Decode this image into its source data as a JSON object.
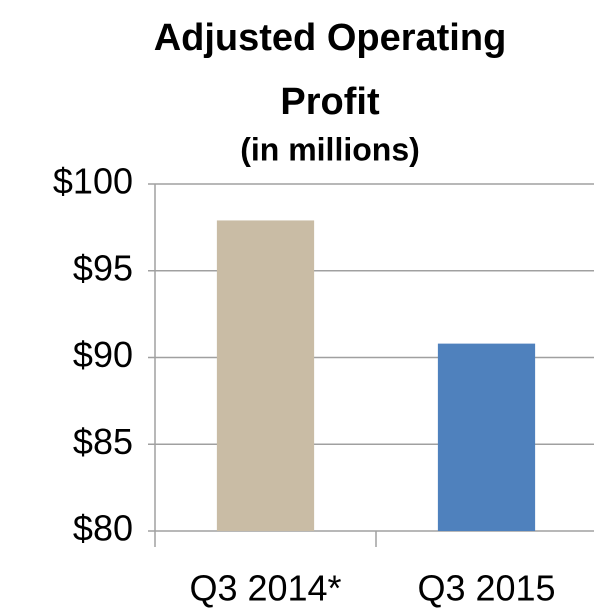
{
  "chart_data": {
    "type": "bar",
    "title": "Adjusted Operating Profit",
    "subtitle": "(in millions)",
    "categories": [
      "Q3 2014*",
      "Q3 2015"
    ],
    "values": [
      97.9,
      90.8
    ],
    "colors": [
      "#c9bca5",
      "#4f81bd"
    ],
    "ylim": [
      80,
      100
    ],
    "yticks": [
      {
        "value": 80,
        "label": "$80"
      },
      {
        "value": 85,
        "label": "$85"
      },
      {
        "value": 90,
        "label": "$90"
      },
      {
        "value": 95,
        "label": "$95"
      },
      {
        "value": 100,
        "label": "$100"
      }
    ],
    "grid": true
  }
}
